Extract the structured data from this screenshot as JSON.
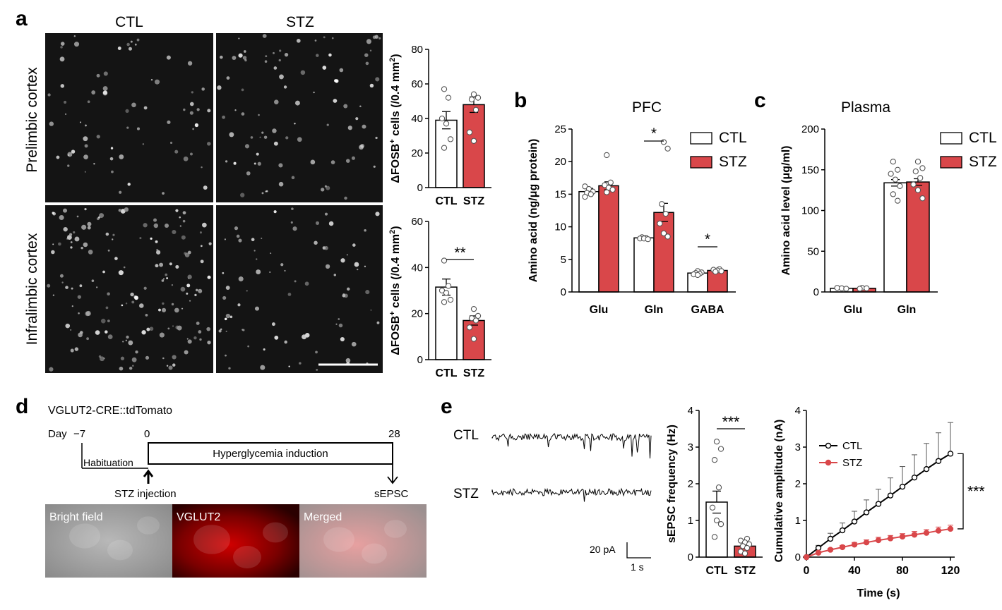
{
  "panel_labels": {
    "a": "a",
    "b": "b",
    "c": "c",
    "d": "d",
    "e": "e"
  },
  "panel_a": {
    "col_ctl": "CTL",
    "col_stz": "STZ",
    "row_prelimbic": "Prelimbic cortex",
    "row_infralimbic": "Infralimbic cortex"
  },
  "panel_d": {
    "title": "VGLUT2-CRE::tdTomato",
    "day_prefix": "Day",
    "day_neg7": "−7",
    "day_0": "0",
    "day_28": "28",
    "habituation": "Habituation",
    "induction": "Hyperglycemia induction",
    "stz_injection": "STZ injection",
    "sepsc": "sEPSC",
    "img_bright": "Bright field",
    "img_vglut2": "VGLUT2",
    "img_merged": "Merged"
  },
  "panel_e": {
    "trace_ctl": "CTL",
    "trace_stz": "STZ",
    "scale_pa": "20 pA",
    "scale_s": "1 s"
  },
  "colors": {
    "ctl": "#ffffff",
    "stz": "#d9474a",
    "stroke": "#000000",
    "merge_tint": "#e8a0a0"
  },
  "chart_data": [
    {
      "id": "a-prelimbic",
      "type": "bar",
      "categories": [
        "CTL",
        "STZ"
      ],
      "values": [
        39,
        48
      ],
      "sem": [
        5,
        4.5
      ],
      "points": [
        [
          57,
          52,
          40,
          37,
          28,
          23
        ],
        [
          54,
          52,
          51,
          45,
          32,
          27
        ]
      ],
      "ylabel_base": "ΔFOSB",
      "ylabel_sup": "+",
      "ylabel_rest": " cells (/0.4 mm",
      "ylabel_sup2": "2",
      "ylabel_end": ")",
      "ylim": [
        0,
        80
      ],
      "yticks": [
        "0",
        "20",
        "40",
        "60",
        "80"
      ],
      "sig": ""
    },
    {
      "id": "a-infralimbic",
      "type": "bar",
      "categories": [
        "CTL",
        "STZ"
      ],
      "values": [
        31.5,
        17
      ],
      "sem": [
        3.5,
        2
      ],
      "points": [
        [
          43,
          32,
          30,
          29,
          26,
          25
        ],
        [
          22,
          19,
          18,
          17,
          14,
          9
        ]
      ],
      "ylabel_base": "ΔFOSB",
      "ylabel_sup": "+",
      "ylabel_rest": " cells (/0.4 mm",
      "ylabel_sup2": "2",
      "ylabel_end": ")",
      "ylim": [
        0,
        60
      ],
      "yticks": [
        "0",
        "20",
        "40",
        "60"
      ],
      "sig": "**"
    },
    {
      "id": "b",
      "type": "bar",
      "title": "PFC",
      "categories": [
        "Glu",
        "Gln",
        "GABA"
      ],
      "series": [
        {
          "name": "CTL",
          "values": [
            15.4,
            8.3,
            2.9
          ],
          "sem": [
            0.5,
            0.2,
            0.2
          ]
        },
        {
          "name": "STZ",
          "values": [
            16.3,
            12.2,
            3.3
          ],
          "sem": [
            0.6,
            1.4,
            0.2
          ]
        }
      ],
      "points": [
        [
          [
            16.2,
            15.8,
            15.4,
            15.2,
            15.0,
            14.6
          ],
          [
            8.4,
            8.3,
            8.2,
            8.2,
            8.1
          ],
          [
            3.2,
            3.0,
            2.9,
            2.8,
            2.7,
            2.6
          ]
        ],
        [
          [
            21.0,
            16.8,
            16.4,
            16.0,
            15.7,
            15.3
          ],
          [
            23.0,
            22.0,
            13.5,
            12.0,
            10.5,
            9.0,
            8.5
          ],
          [
            3.5,
            3.4,
            3.3,
            3.2,
            3.1
          ]
        ]
      ],
      "ylabel": "Amino acid (ng/μg protein)",
      "ylim": [
        0,
        25
      ],
      "yticks": [
        "0",
        "5",
        "10",
        "15",
        "20",
        "25"
      ],
      "sig": [
        "",
        "*",
        "*"
      ],
      "legend": [
        "CTL",
        "STZ"
      ]
    },
    {
      "id": "c",
      "type": "bar",
      "title": "Plasma",
      "categories": [
        "Glu",
        "Gln"
      ],
      "series": [
        {
          "name": "CTL",
          "values": [
            4.5,
            134
          ],
          "sem": [
            0.5,
            4
          ]
        },
        {
          "name": "STZ",
          "values": [
            4.5,
            135
          ],
          "sem": [
            0.5,
            4
          ]
        }
      ],
      "points": [
        [
          [
            5,
            4.5,
            4
          ],
          [
            160,
            150,
            145,
            138,
            130,
            120,
            112
          ]
        ],
        [
          [
            5,
            4.5,
            4
          ],
          [
            160,
            152,
            148,
            140,
            132,
            125,
            115
          ]
        ]
      ],
      "ylabel": "Amino acid level (μg/ml)",
      "ylim": [
        0,
        200
      ],
      "yticks": [
        "0",
        "50",
        "100",
        "150",
        "200"
      ],
      "legend": [
        "CTL",
        "STZ"
      ]
    },
    {
      "id": "e-freq",
      "type": "bar",
      "categories": [
        "CTL",
        "STZ"
      ],
      "values": [
        1.5,
        0.3
      ],
      "sem": [
        0.3,
        0.05
      ],
      "points": [
        [
          3.15,
          2.95,
          2.65,
          1.9,
          1.35,
          1.0,
          0.9,
          0.55
        ],
        [
          0.5,
          0.45,
          0.4,
          0.35,
          0.3,
          0.25,
          0.15,
          0.1
        ]
      ],
      "ylabel": "sEPSC frequency (Hz)",
      "ylim": [
        0,
        4
      ],
      "yticks": [
        "0",
        "1",
        "2",
        "3",
        "4"
      ],
      "sig": "***"
    },
    {
      "id": "e-cumulative",
      "type": "line",
      "x": [
        0,
        10,
        20,
        30,
        40,
        50,
        60,
        70,
        80,
        90,
        100,
        110,
        120
      ],
      "series": [
        {
          "name": "CTL",
          "values": [
            0,
            0.25,
            0.5,
            0.73,
            0.97,
            1.22,
            1.45,
            1.68,
            1.92,
            2.17,
            2.4,
            2.62,
            2.82
          ],
          "err": [
            0,
            0.07,
            0.15,
            0.2,
            0.28,
            0.34,
            0.4,
            0.48,
            0.55,
            0.62,
            0.7,
            0.77,
            0.85
          ]
        },
        {
          "name": "STZ",
          "values": [
            0,
            0.12,
            0.2,
            0.27,
            0.34,
            0.4,
            0.46,
            0.51,
            0.56,
            0.61,
            0.66,
            0.72,
            0.77
          ],
          "err": [
            0,
            0.03,
            0.04,
            0.05,
            0.06,
            0.07,
            0.08,
            0.08,
            0.08,
            0.09,
            0.09,
            0.1,
            0.1
          ]
        }
      ],
      "xlabel": "Time (s)",
      "ylabel": "Cumulative amplitude (nA)",
      "xlim": [
        0,
        120
      ],
      "ylim": [
        0,
        4
      ],
      "xticks": [
        "0",
        "40",
        "80",
        "120"
      ],
      "yticks": [
        "0",
        "1",
        "2",
        "3",
        "4"
      ],
      "sig": "***",
      "legend": [
        "CTL",
        "STZ"
      ]
    }
  ]
}
